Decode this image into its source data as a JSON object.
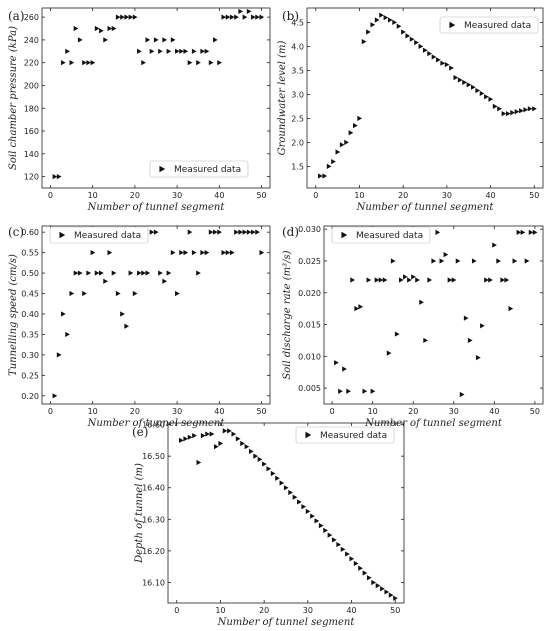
{
  "chart_data": [
    {
      "type": "scatter",
      "panel": "(a)",
      "xlabel": "Number of tunnel segment",
      "ylabel": "Soil chamber pressure (kPa)",
      "xlim": [
        -2,
        52
      ],
      "ylim": [
        110,
        268
      ],
      "xticks": [
        0,
        10,
        20,
        30,
        40,
        50
      ],
      "yticks": [
        120,
        140,
        160,
        180,
        200,
        220,
        240,
        260
      ],
      "legend": "Measured data",
      "legend_position": "bottom-right",
      "series": [
        {
          "name": "Measured data",
          "x": [
            1,
            2,
            3,
            4,
            5,
            6,
            7,
            8,
            9,
            10,
            11,
            12,
            13,
            14,
            15,
            16,
            17,
            18,
            19,
            20,
            21,
            22,
            23,
            24,
            25,
            26,
            27,
            28,
            29,
            30,
            31,
            32,
            33,
            34,
            35,
            36,
            37,
            38,
            39,
            40,
            41,
            42,
            43,
            44,
            45,
            46,
            47,
            48,
            49,
            50
          ],
          "y": [
            120,
            120,
            220,
            230,
            220,
            250,
            240,
            220,
            220,
            220,
            250,
            248,
            240,
            250,
            250,
            260,
            260,
            260,
            260,
            260,
            230,
            220,
            240,
            230,
            240,
            230,
            240,
            230,
            240,
            230,
            230,
            230,
            220,
            230,
            220,
            230,
            230,
            220,
            240,
            220,
            260,
            260,
            260,
            260,
            265,
            260,
            265,
            260,
            260,
            260
          ]
        }
      ]
    },
    {
      "type": "scatter",
      "panel": "(b)",
      "xlabel": "Number of tunnel segment",
      "ylabel": "Groundwater level (m)",
      "xlim": [
        -2,
        52
      ],
      "ylim": [
        1.05,
        4.8
      ],
      "xticks": [
        0,
        10,
        20,
        30,
        40,
        50
      ],
      "yticks": [
        1.5,
        2.0,
        2.5,
        3.0,
        3.5,
        4.0,
        4.5
      ],
      "legend": "Measured data",
      "legend_position": "top-right",
      "series": [
        {
          "name": "Measured data",
          "x": [
            1,
            2,
            3,
            4,
            5,
            6,
            7,
            8,
            9,
            10,
            11,
            12,
            13,
            14,
            15,
            16,
            17,
            18,
            19,
            20,
            21,
            22,
            23,
            24,
            25,
            26,
            27,
            28,
            29,
            30,
            31,
            32,
            33,
            34,
            35,
            36,
            37,
            38,
            39,
            40,
            41,
            42,
            43,
            44,
            45,
            46,
            47,
            48,
            49,
            50
          ],
          "y": [
            1.3,
            1.3,
            1.5,
            1.6,
            1.8,
            1.95,
            2.0,
            2.2,
            2.35,
            2.5,
            4.1,
            4.3,
            4.45,
            4.55,
            4.65,
            4.6,
            4.55,
            4.5,
            4.42,
            4.3,
            4.22,
            4.15,
            4.08,
            4.0,
            3.92,
            3.85,
            3.78,
            3.72,
            3.65,
            3.62,
            3.55,
            3.35,
            3.3,
            3.25,
            3.2,
            3.15,
            3.08,
            3.02,
            2.95,
            2.9,
            2.75,
            2.7,
            2.6,
            2.6,
            2.62,
            2.64,
            2.66,
            2.68,
            2.7,
            2.7
          ]
        }
      ]
    },
    {
      "type": "scatter",
      "panel": "(c)",
      "xlabel": "Number of tunnel segment",
      "ylabel": "Tunnelling speed (cm/s)",
      "xlim": [
        -2,
        52
      ],
      "ylim": [
        0.18,
        0.615
      ],
      "xticks": [
        0,
        10,
        20,
        30,
        40,
        50
      ],
      "yticks": [
        0.2,
        0.25,
        0.3,
        0.35,
        0.4,
        0.45,
        0.5,
        0.55,
        0.6
      ],
      "legend": "Measured data",
      "legend_position": "top-left",
      "series": [
        {
          "name": "Measured data",
          "x": [
            1,
            2,
            3,
            4,
            5,
            6,
            7,
            8,
            9,
            10,
            11,
            12,
            13,
            14,
            15,
            16,
            17,
            18,
            19,
            20,
            21,
            22,
            23,
            24,
            25,
            26,
            27,
            28,
            29,
            30,
            31,
            32,
            33,
            34,
            35,
            36,
            37,
            38,
            39,
            40,
            41,
            42,
            43,
            44,
            45,
            46,
            47,
            48,
            49,
            50
          ],
          "y": [
            0.2,
            0.3,
            0.4,
            0.35,
            0.45,
            0.5,
            0.5,
            0.45,
            0.5,
            0.55,
            0.5,
            0.5,
            0.48,
            0.55,
            0.5,
            0.45,
            0.4,
            0.37,
            0.5,
            0.45,
            0.5,
            0.5,
            0.5,
            0.6,
            0.6,
            0.5,
            0.48,
            0.5,
            0.55,
            0.45,
            0.55,
            0.55,
            0.6,
            0.55,
            0.5,
            0.55,
            0.55,
            0.6,
            0.6,
            0.6,
            0.55,
            0.55,
            0.55,
            0.6,
            0.6,
            0.6,
            0.6,
            0.6,
            0.6,
            0.55
          ]
        }
      ]
    },
    {
      "type": "scatter",
      "panel": "(d)",
      "xlabel": "Number of tunnel segment",
      "ylabel": "Soil discharge rate (m³/s)",
      "xlim": [
        -2,
        52
      ],
      "ylim": [
        0.0025,
        0.0305
      ],
      "xticks": [
        0,
        10,
        20,
        30,
        40,
        50
      ],
      "yticks": [
        0.005,
        0.01,
        0.015,
        0.02,
        0.025,
        0.03
      ],
      "ytick_labels": [
        "0.005",
        "0.010",
        "0.015",
        "0.020",
        "0.025",
        "0.030"
      ],
      "legend": "Measured data",
      "legend_position": "top-left",
      "series": [
        {
          "name": "Measured data",
          "x": [
            1,
            2,
            3,
            4,
            5,
            6,
            7,
            8,
            9,
            10,
            11,
            12,
            13,
            14,
            15,
            16,
            17,
            18,
            19,
            20,
            21,
            22,
            23,
            24,
            25,
            26,
            27,
            28,
            29,
            30,
            31,
            32,
            33,
            34,
            35,
            36,
            37,
            38,
            39,
            40,
            41,
            42,
            43,
            44,
            45,
            46,
            47,
            48,
            49,
            50
          ],
          "y": [
            0.009,
            0.0045,
            0.008,
            0.0045,
            0.022,
            0.0175,
            0.0178,
            0.0045,
            0.022,
            0.0045,
            0.022,
            0.022,
            0.022,
            0.0105,
            0.025,
            0.0135,
            0.022,
            0.0225,
            0.022,
            0.0225,
            0.022,
            0.0185,
            0.0125,
            0.022,
            0.025,
            0.0295,
            0.025,
            0.026,
            0.022,
            0.022,
            0.025,
            0.004,
            0.016,
            0.0125,
            0.025,
            0.0098,
            0.0148,
            0.022,
            0.022,
            0.0275,
            0.025,
            0.022,
            0.022,
            0.0175,
            0.025,
            0.0295,
            0.0295,
            0.025,
            0.0295,
            0.0295
          ]
        }
      ]
    },
    {
      "type": "scatter",
      "panel": "(e)",
      "xlabel": "Number of tunnel segment",
      "ylabel": "Depth of tunnel (m)",
      "xlim": [
        -2,
        52
      ],
      "ylim": [
        16.035,
        16.605
      ],
      "xticks": [
        0,
        10,
        20,
        30,
        40,
        50
      ],
      "yticks": [
        16.1,
        16.2,
        16.3,
        16.4,
        16.5,
        16.6
      ],
      "legend": "Measured data",
      "legend_position": "top-right",
      "series": [
        {
          "name": "Measured data",
          "x": [
            1,
            2,
            3,
            4,
            5,
            6,
            7,
            8,
            9,
            10,
            11,
            12,
            13,
            14,
            15,
            16,
            17,
            18,
            19,
            20,
            21,
            22,
            23,
            24,
            25,
            26,
            27,
            28,
            29,
            30,
            31,
            32,
            33,
            34,
            35,
            36,
            37,
            38,
            39,
            40,
            41,
            42,
            43,
            44,
            45,
            46,
            47,
            48,
            49,
            50
          ],
          "y": [
            16.55,
            16.555,
            16.56,
            16.565,
            16.48,
            16.565,
            16.57,
            16.57,
            16.53,
            16.54,
            16.58,
            16.58,
            16.57,
            16.555,
            16.54,
            16.53,
            16.515,
            16.5,
            16.49,
            16.475,
            16.46,
            16.445,
            16.43,
            16.415,
            16.4,
            16.385,
            16.37,
            16.355,
            16.34,
            16.325,
            16.31,
            16.295,
            16.28,
            16.265,
            16.25,
            16.235,
            16.22,
            16.205,
            16.19,
            16.175,
            16.16,
            16.145,
            16.13,
            16.115,
            16.1,
            16.09,
            16.08,
            16.07,
            16.06,
            16.05
          ]
        }
      ]
    }
  ]
}
